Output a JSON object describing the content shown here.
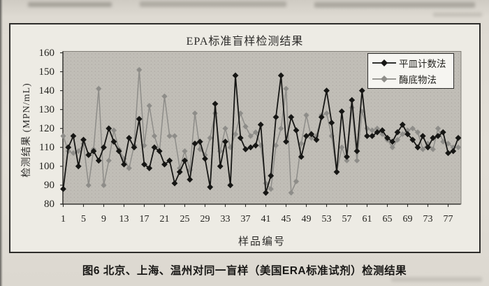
{
  "figure": {
    "caption": "图6 北京、上海、温州对同一盲样（美国ERA标准试剂）检测结果"
  },
  "chart_data": {
    "type": "line",
    "title": "EPA标准盲样检测结果",
    "xlabel": "样品编号",
    "ylabel": "检测结果 (MPN/mL)",
    "ylim": [
      80,
      160
    ],
    "yticks": [
      160,
      150,
      140,
      130,
      120,
      110,
      100,
      90,
      80
    ],
    "xticks": [
      1,
      5,
      9,
      13,
      17,
      21,
      25,
      29,
      33,
      37,
      41,
      45,
      49,
      53,
      57,
      61,
      65,
      69,
      73,
      77
    ],
    "x_range": [
      1,
      79
    ],
    "grid": false,
    "legend_position": "top-right",
    "plot_bg": "#c1beb7",
    "axis_color": "#2b2a27",
    "series": [
      {
        "name": "平皿计数法",
        "color": "#161614",
        "marker": "diamond",
        "values": [
          88,
          110,
          116,
          100,
          114,
          106,
          108,
          103,
          110,
          120,
          113,
          108,
          101,
          115,
          110,
          125,
          101,
          99,
          110,
          108,
          101,
          103,
          91,
          97,
          103,
          93,
          112,
          113,
          104,
          89,
          133,
          100,
          113,
          90,
          148,
          115,
          109,
          110,
          111,
          122,
          86,
          95,
          126,
          148,
          113,
          126,
          119,
          105,
          116,
          117,
          114,
          126,
          140,
          123,
          97,
          129,
          105,
          135,
          108,
          140,
          116,
          116,
          118,
          119,
          115,
          113,
          118,
          122,
          117,
          114,
          110,
          116,
          110,
          115,
          116,
          118,
          107,
          108,
          115
        ]
      },
      {
        "name": "酶底物法",
        "color": "#8e8d89",
        "marker": "diamond",
        "values": [
          116,
          108,
          107,
          108,
          112,
          90,
          109,
          141,
          90,
          103,
          119,
          109,
          104,
          99,
          111,
          151,
          111,
          132,
          116,
          108,
          137,
          116,
          116,
          99,
          108,
          98,
          128,
          109,
          106,
          115,
          128,
          108,
          120,
          110,
          117,
          128,
          121,
          116,
          118,
          111,
          91,
          88,
          111,
          120,
          141,
          86,
          92,
          112,
          127,
          115,
          116,
          127,
          128,
          116,
          97,
          110,
          103,
          131,
          103,
          129,
          120,
          119,
          120,
          117,
          114,
          110,
          114,
          117,
          119,
          120,
          118,
          109,
          112,
          109,
          120,
          113,
          112,
          110,
          110
        ]
      }
    ]
  }
}
